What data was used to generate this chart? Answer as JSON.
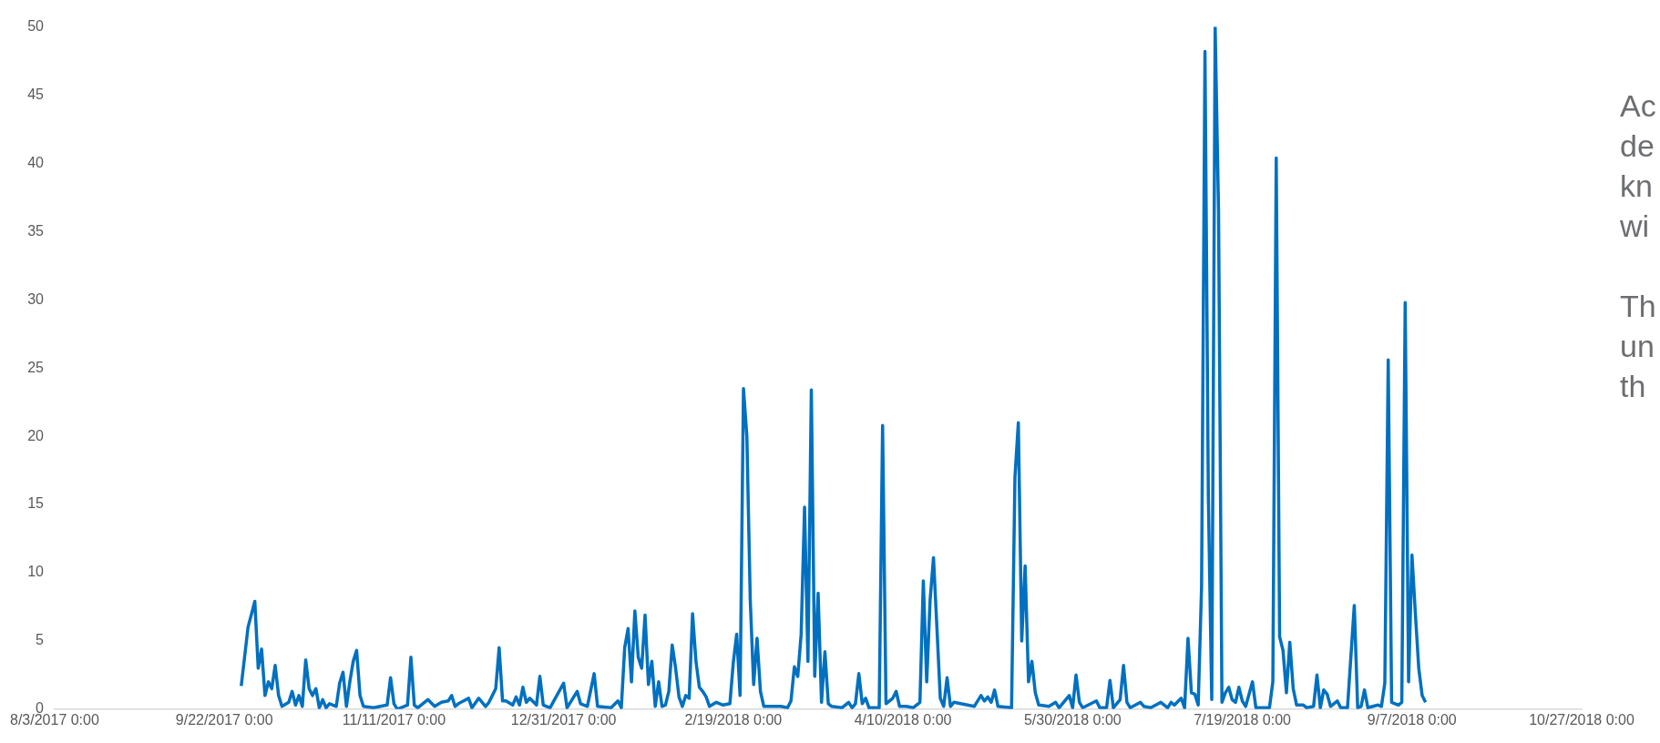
{
  "chart_data": {
    "type": "line",
    "x": [
      "2017-09-27",
      "2017-09-29",
      "2017-10-01",
      "2017-10-02",
      "2017-10-03",
      "2017-10-04",
      "2017-10-05",
      "2017-10-06",
      "2017-10-07",
      "2017-10-08",
      "2017-10-09",
      "2017-10-11",
      "2017-10-12",
      "2017-10-13",
      "2017-10-14",
      "2017-10-15",
      "2017-10-16",
      "2017-10-17",
      "2017-10-18",
      "2017-10-19",
      "2017-10-20",
      "2017-10-21",
      "2017-10-22",
      "2017-10-23",
      "2017-10-25",
      "2017-10-26",
      "2017-10-27",
      "2017-10-28",
      "2017-10-29",
      "2017-10-30",
      "2017-10-31",
      "2017-11-01",
      "2017-11-02",
      "2017-11-05",
      "2017-11-09",
      "2017-11-10",
      "2017-11-11",
      "2017-11-12",
      "2017-11-15",
      "2017-11-16",
      "2017-11-17",
      "2017-11-18",
      "2017-11-21",
      "2017-11-23",
      "2017-11-25",
      "2017-11-27",
      "2017-11-28",
      "2017-11-29",
      "2017-11-30",
      "2017-12-03",
      "2017-12-04",
      "2017-12-06",
      "2017-12-08",
      "2017-12-09",
      "2017-12-11",
      "2017-12-12",
      "2017-12-13",
      "2017-12-14",
      "2017-12-16",
      "2017-12-17",
      "2017-12-18",
      "2017-12-19",
      "2017-12-20",
      "2017-12-21",
      "2017-12-23",
      "2017-12-24",
      "2017-12-25",
      "2017-12-27",
      "2017-12-31",
      "2018-01-01",
      "2018-01-02",
      "2018-01-04",
      "2018-01-05",
      "2018-01-07",
      "2018-01-09",
      "2018-01-10",
      "2018-01-14",
      "2018-01-16",
      "2018-01-17",
      "2018-01-18",
      "2018-01-19",
      "2018-01-20",
      "2018-01-21",
      "2018-01-22",
      "2018-01-23",
      "2018-01-24",
      "2018-01-25",
      "2018-01-26",
      "2018-01-27",
      "2018-01-28",
      "2018-01-29",
      "2018-01-30",
      "2018-01-31",
      "2018-02-01",
      "2018-02-02",
      "2018-02-03",
      "2018-02-04",
      "2018-02-05",
      "2018-02-06",
      "2018-02-07",
      "2018-02-08",
      "2018-02-09",
      "2018-02-10",
      "2018-02-11",
      "2018-02-12",
      "2018-02-14",
      "2018-02-16",
      "2018-02-18",
      "2018-02-19",
      "2018-02-20",
      "2018-02-21",
      "2018-02-22",
      "2018-02-23",
      "2018-02-24",
      "2018-02-25",
      "2018-02-26",
      "2018-02-27",
      "2018-02-28",
      "2018-03-01",
      "2018-03-05",
      "2018-03-07",
      "2018-03-08",
      "2018-03-09",
      "2018-03-10",
      "2018-03-11",
      "2018-03-12",
      "2018-03-13",
      "2018-03-14",
      "2018-03-15",
      "2018-03-16",
      "2018-03-17",
      "2018-03-18",
      "2018-03-19",
      "2018-03-20",
      "2018-03-23",
      "2018-03-25",
      "2018-03-26",
      "2018-03-27",
      "2018-03-28",
      "2018-03-29",
      "2018-03-30",
      "2018-03-31",
      "2018-04-03",
      "2018-04-04",
      "2018-04-05",
      "2018-04-07",
      "2018-04-08",
      "2018-04-09",
      "2018-04-11",
      "2018-04-13",
      "2018-04-15",
      "2018-04-16",
      "2018-04-17",
      "2018-04-18",
      "2018-04-19",
      "2018-04-20",
      "2018-04-21",
      "2018-04-22",
      "2018-04-23",
      "2018-04-24",
      "2018-04-25",
      "2018-04-29",
      "2018-05-01",
      "2018-05-03",
      "2018-05-04",
      "2018-05-05",
      "2018-05-06",
      "2018-05-07",
      "2018-05-08",
      "2018-05-12",
      "2018-05-13",
      "2018-05-14",
      "2018-05-15",
      "2018-05-16",
      "2018-05-17",
      "2018-05-18",
      "2018-05-19",
      "2018-05-20",
      "2018-05-23",
      "2018-05-25",
      "2018-05-26",
      "2018-05-29",
      "2018-05-30",
      "2018-05-31",
      "2018-06-01",
      "2018-06-02",
      "2018-06-06",
      "2018-06-07",
      "2018-06-09",
      "2018-06-10",
      "2018-06-11",
      "2018-06-13",
      "2018-06-14",
      "2018-06-15",
      "2018-06-16",
      "2018-06-19",
      "2018-06-20",
      "2018-06-22",
      "2018-06-25",
      "2018-06-27",
      "2018-06-28",
      "2018-06-29",
      "2018-07-01",
      "2018-07-02",
      "2018-07-03",
      "2018-07-04",
      "2018-07-05",
      "2018-07-06",
      "2018-07-07",
      "2018-07-08",
      "2018-07-09",
      "2018-07-10",
      "2018-07-11",
      "2018-07-12",
      "2018-07-13",
      "2018-07-14",
      "2018-07-15",
      "2018-07-16",
      "2018-07-17",
      "2018-07-18",
      "2018-07-19",
      "2018-07-20",
      "2018-07-22",
      "2018-07-23",
      "2018-07-27",
      "2018-07-28",
      "2018-07-29",
      "2018-07-30",
      "2018-07-31",
      "2018-08-01",
      "2018-08-02",
      "2018-08-03",
      "2018-08-04",
      "2018-08-06",
      "2018-08-07",
      "2018-08-09",
      "2018-08-10",
      "2018-08-11",
      "2018-08-12",
      "2018-08-13",
      "2018-08-14",
      "2018-08-16",
      "2018-08-17",
      "2018-08-19",
      "2018-08-21",
      "2018-08-22",
      "2018-08-23",
      "2018-08-24",
      "2018-08-25",
      "2018-08-28",
      "2018-08-29",
      "2018-08-30",
      "2018-08-31",
      "2018-09-01",
      "2018-09-03",
      "2018-09-04",
      "2018-09-05",
      "2018-09-06",
      "2018-09-07",
      "2018-09-08",
      "2018-09-09",
      "2018-09-10",
      "2018-09-11"
    ],
    "values": [
      1.7,
      6.0,
      7.9,
      3.0,
      4.4,
      1.0,
      2.0,
      1.5,
      3.2,
      1.0,
      0.2,
      0.5,
      1.3,
      0.3,
      1.0,
      0.2,
      3.6,
      1.5,
      1.0,
      1.5,
      0.1,
      0.7,
      0.1,
      0.4,
      0.2,
      1.9,
      2.7,
      0.2,
      2.0,
      3.5,
      4.3,
      1.0,
      0.2,
      0.1,
      0.3,
      2.3,
      0.4,
      0.0,
      0.3,
      3.8,
      0.3,
      0.1,
      0.7,
      0.2,
      0.5,
      0.6,
      1.0,
      0.2,
      0.4,
      0.8,
      0.1,
      0.8,
      0.2,
      0.5,
      1.5,
      4.5,
      0.6,
      0.6,
      0.3,
      0.9,
      0.3,
      1.6,
      0.5,
      0.8,
      0.3,
      2.4,
      0.3,
      0.1,
      1.9,
      0.1,
      0.5,
      1.3,
      0.4,
      0.2,
      2.6,
      0.2,
      0.1,
      0.6,
      0.1,
      4.5,
      5.9,
      2.0,
      7.2,
      3.8,
      3.0,
      6.9,
      1.8,
      3.5,
      0.2,
      2.0,
      0.2,
      0.3,
      1.3,
      4.7,
      3.0,
      0.9,
      0.2,
      1.0,
      0.8,
      7.0,
      3.5,
      1.6,
      1.3,
      0.9,
      0.2,
      0.5,
      0.3,
      0.4,
      3.4,
      5.5,
      1.0,
      23.5,
      20,
      8,
      1.8,
      5.2,
      1.3,
      0.2,
      0.2,
      0.2,
      0.1,
      0.6,
      3.1,
      2.4,
      5.5,
      14.8,
      3.5,
      23.4,
      2.4,
      8.5,
      0.5,
      4.2,
      0.4,
      0.2,
      0.1,
      0.5,
      0.1,
      0.4,
      2.6,
      0.4,
      0.8,
      0.1,
      0.1,
      20.8,
      0.4,
      0.8,
      1.3,
      0.2,
      0.2,
      0.1,
      0.5,
      9.4,
      2.0,
      8,
      11.1,
      6,
      0.8,
      0.2,
      2.3,
      0.2,
      0.5,
      0.3,
      0.2,
      1.0,
      0.6,
      0.9,
      0.5,
      1.4,
      0.2,
      0.1,
      17,
      21.0,
      5,
      10.5,
      2.0,
      3.5,
      1.2,
      0.3,
      0.2,
      0.5,
      0.1,
      1.0,
      0.1,
      2.5,
      0.5,
      0.1,
      0.6,
      0.1,
      0.1,
      2.1,
      0.1,
      0.7,
      3.2,
      0.5,
      0.1,
      0.5,
      0.2,
      0.1,
      0.5,
      0.1,
      0.5,
      0.3,
      0.8,
      0.1,
      5.2,
      1.2,
      1.1,
      0.3,
      9.0,
      48.2,
      15.5,
      0.7,
      50,
      36.5,
      0.5,
      1.2,
      1.6,
      0.7,
      0.5,
      1.6,
      0.6,
      0.2,
      2.0,
      0.1,
      0.1,
      2.0,
      40.4,
      5.3,
      4.3,
      1.2,
      4.9,
      1.5,
      0.3,
      0.3,
      0.1,
      0.2,
      2.5,
      0.1,
      1.4,
      1.1,
      0.2,
      0.6,
      0.1,
      0.1,
      7.6,
      0.1,
      0.2,
      1.4,
      0.1,
      0.3,
      0.2,
      1.9,
      25.6,
      0.5,
      0.3,
      0.5,
      29.8,
      2.0,
      11.3,
      7,
      3,
      1.0,
      0.5
    ],
    "color": "#0070c0",
    "xlim": [
      "2017-08-03",
      "2018-10-27"
    ],
    "xticks": [
      {
        "value": "2017-08-03",
        "label": "8/3/2017 0:00"
      },
      {
        "value": "2017-09-22",
        "label": "9/22/2017 0:00"
      },
      {
        "value": "2017-11-11",
        "label": "11/11/2017 0:00"
      },
      {
        "value": "2017-12-31",
        "label": "12/31/2017 0:00"
      },
      {
        "value": "2018-02-19",
        "label": "2/19/2018 0:00"
      },
      {
        "value": "2018-04-10",
        "label": "4/10/2018 0:00"
      },
      {
        "value": "2018-05-30",
        "label": "5/30/2018 0:00"
      },
      {
        "value": "2018-07-19",
        "label": "7/19/2018 0:00"
      },
      {
        "value": "2018-09-07",
        "label": "9/7/2018 0:00"
      },
      {
        "value": "2018-10-27",
        "label": "10/27/2018 0:00"
      }
    ],
    "ylim": [
      0,
      50
    ],
    "yticks": [
      0,
      5,
      10,
      15,
      20,
      25,
      30,
      35,
      40,
      45,
      50
    ],
    "grid": false,
    "legend": false,
    "marker": "none",
    "line_style": "solid",
    "annotations": [
      "Ac\nde\nkn\nwi",
      "Th\nun\nth"
    ]
  }
}
